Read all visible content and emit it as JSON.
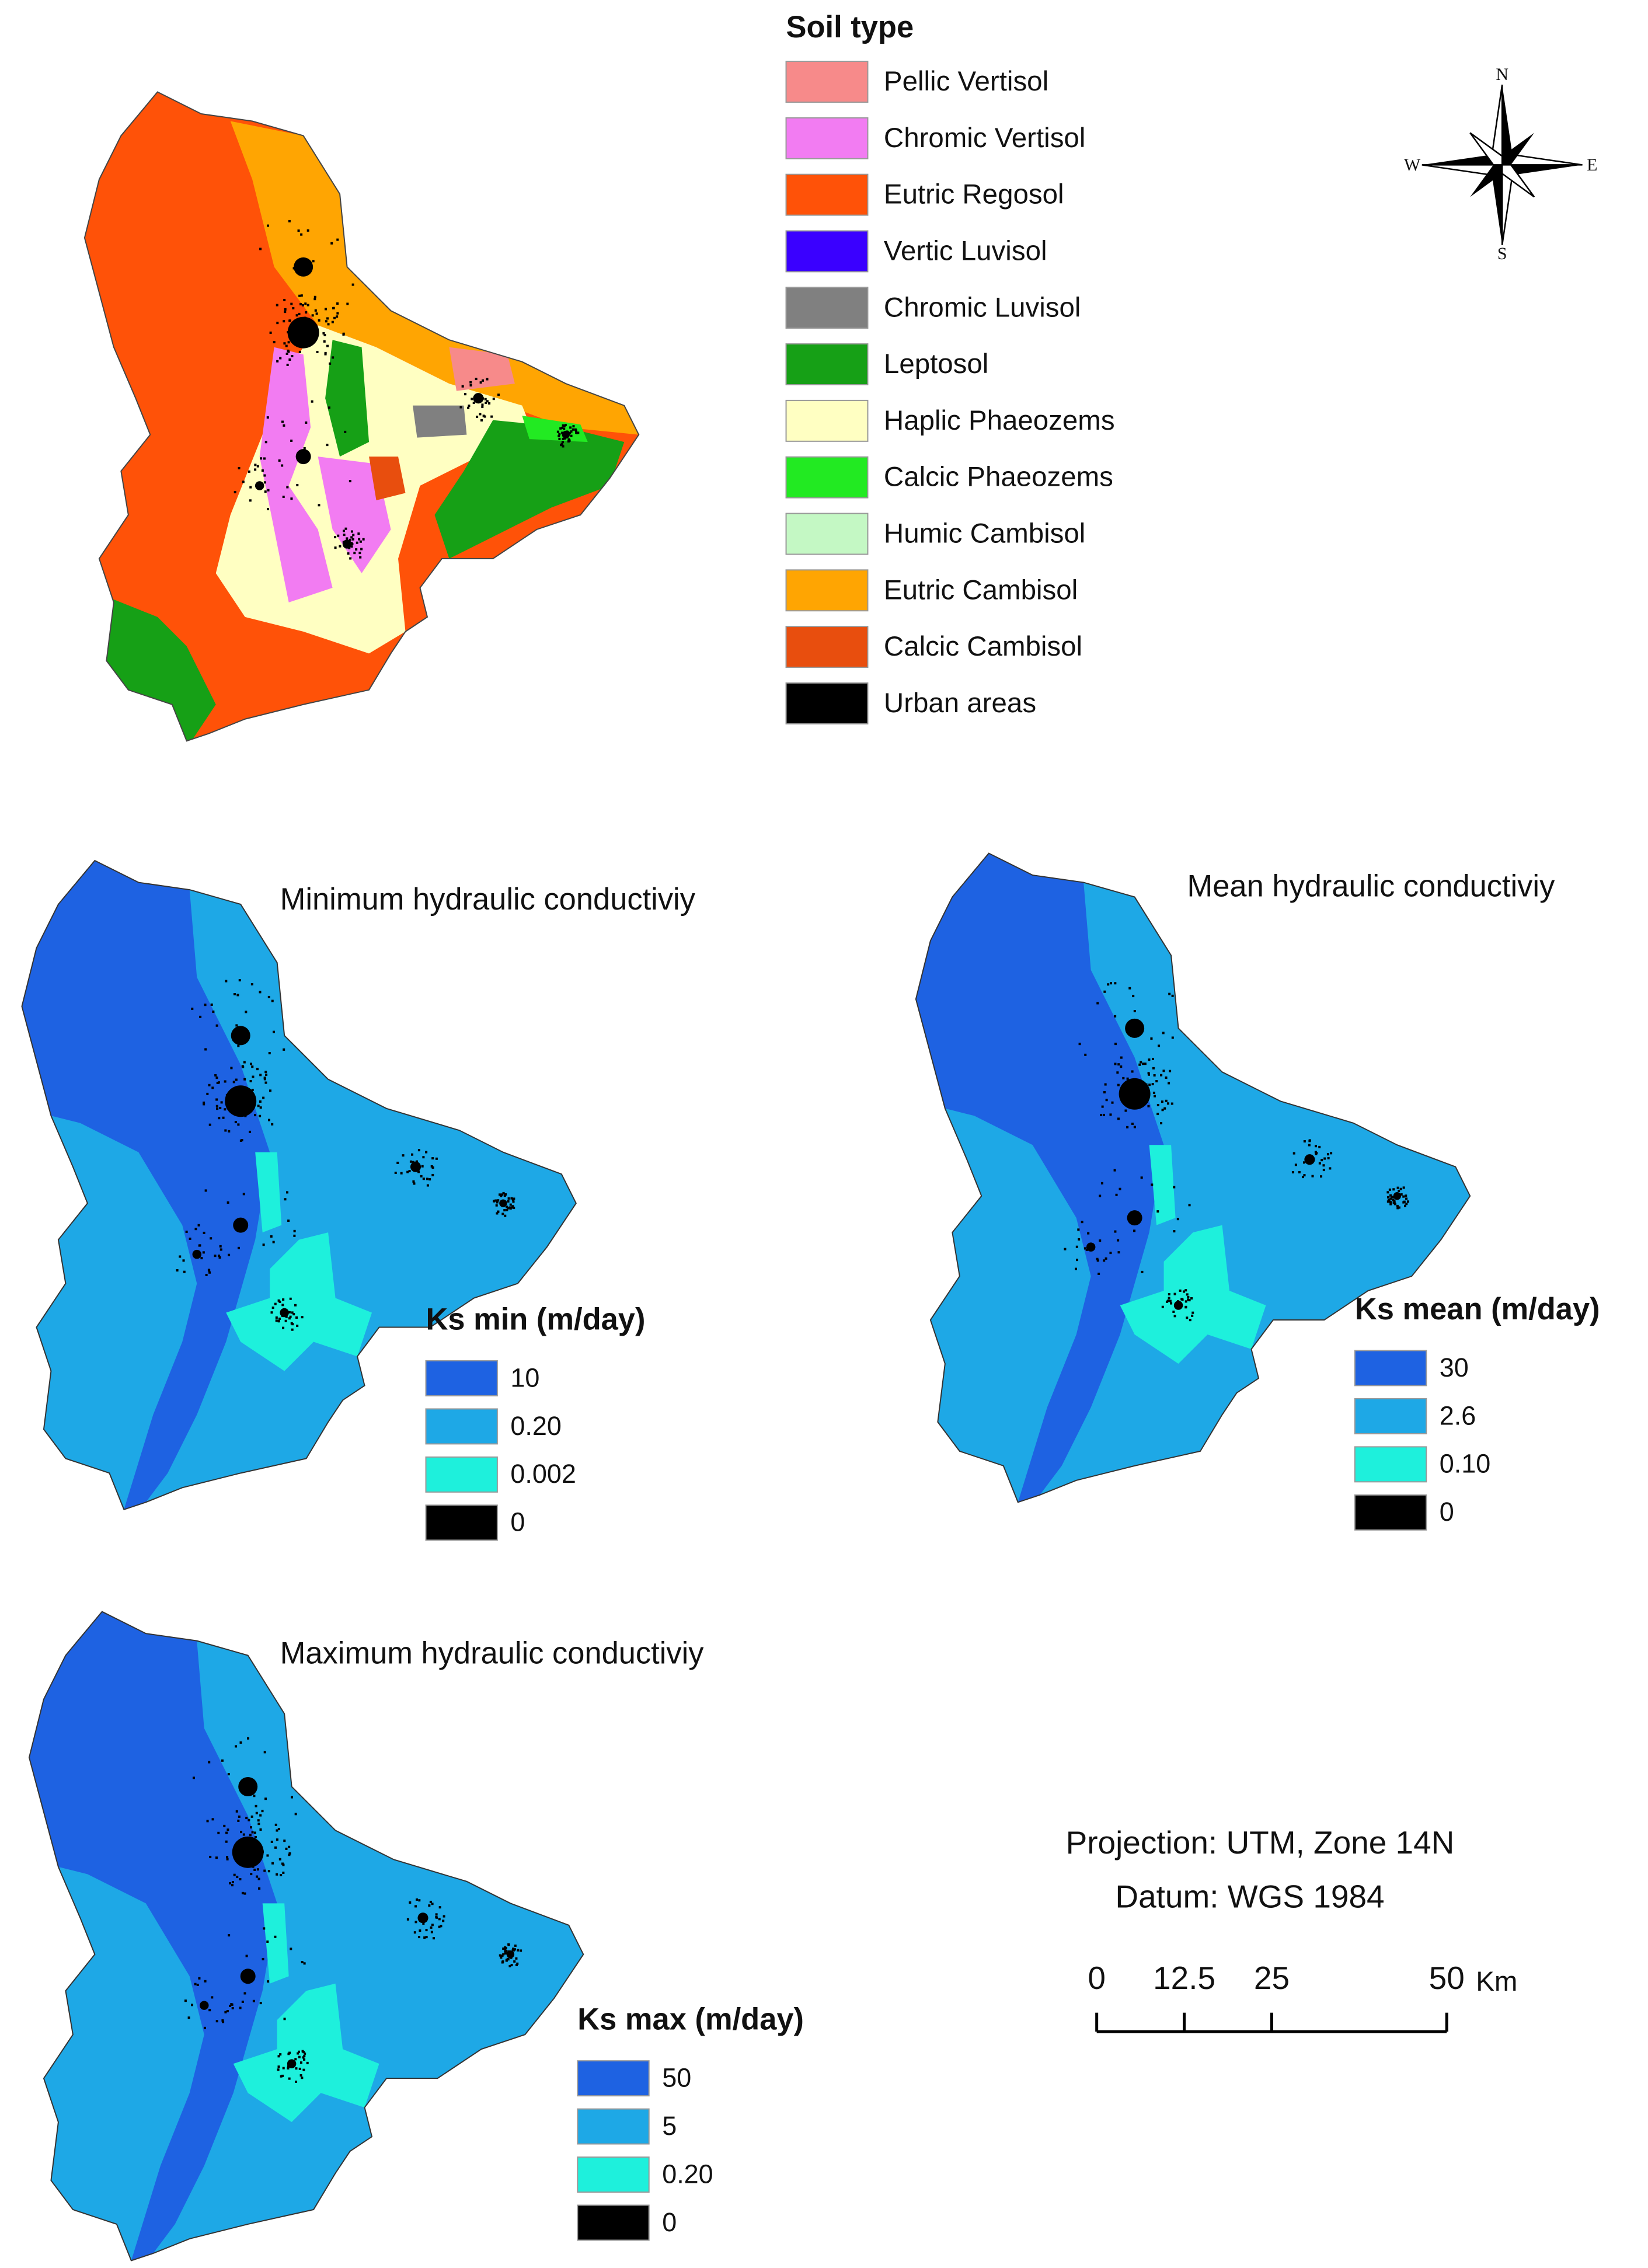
{
  "soil_legend": {
    "title": "Soil type",
    "items": [
      {
        "label": "Pellic Vertisol",
        "color": "#f78a8a"
      },
      {
        "label": "Chromic Vertisol",
        "color": "#f27cf2"
      },
      {
        "label": "Eutric Regosol",
        "color": "#ff5208"
      },
      {
        "label": "Vertic Luvisol",
        "color": "#3a00ff"
      },
      {
        "label": "Chromic Luvisol",
        "color": "#808080"
      },
      {
        "label": "Leptosol",
        "color": "#16a016"
      },
      {
        "label": "Haplic Phaeozems",
        "color": "#ffffc2"
      },
      {
        "label": "Calcic Phaeozems",
        "color": "#22ea22"
      },
      {
        "label": "Humic Cambisol",
        "color": "#c4f8c4"
      },
      {
        "label": "Eutric Cambisol",
        "color": "#ffa502"
      },
      {
        "label": "Calcic Cambisol",
        "color": "#e84e0e"
      },
      {
        "label": "Urban areas",
        "color": "#000000"
      }
    ]
  },
  "compass": {
    "n": "N",
    "s": "S",
    "e": "E",
    "w": "W"
  },
  "panels": [
    {
      "title": "Minimum hydraulic conductiviy",
      "legend_title": "Ks min (m/day)",
      "classes": [
        {
          "label": "10",
          "color": "#1e62e2"
        },
        {
          "label": "0.20",
          "color": "#1ea8e6"
        },
        {
          "label": "0.002",
          "color": "#1ef0dc"
        },
        {
          "label": "0",
          "color": "#000000"
        }
      ]
    },
    {
      "title": "Mean hydraulic conductiviy",
      "legend_title": "Ks mean (m/day)",
      "classes": [
        {
          "label": "30",
          "color": "#1e62e2"
        },
        {
          "label": "2.6",
          "color": "#1ea8e6"
        },
        {
          "label": "0.10",
          "color": "#1ef0dc"
        },
        {
          "label": "0",
          "color": "#000000"
        }
      ]
    },
    {
      "title": "Maximum hydraulic conductiviy",
      "legend_title": "Ks max (m/day)",
      "classes": [
        {
          "label": "50",
          "color": "#1e62e2"
        },
        {
          "label": "5",
          "color": "#1ea8e6"
        },
        {
          "label": "0.20",
          "color": "#1ef0dc"
        },
        {
          "label": "0",
          "color": "#000000"
        }
      ]
    }
  ],
  "projection": [
    "Projection: UTM, Zone 14N",
    "Datum: WGS 1984"
  ],
  "scale_bar": {
    "ticks": [
      0,
      12.5,
      25,
      50
    ],
    "unit": "Km"
  }
}
